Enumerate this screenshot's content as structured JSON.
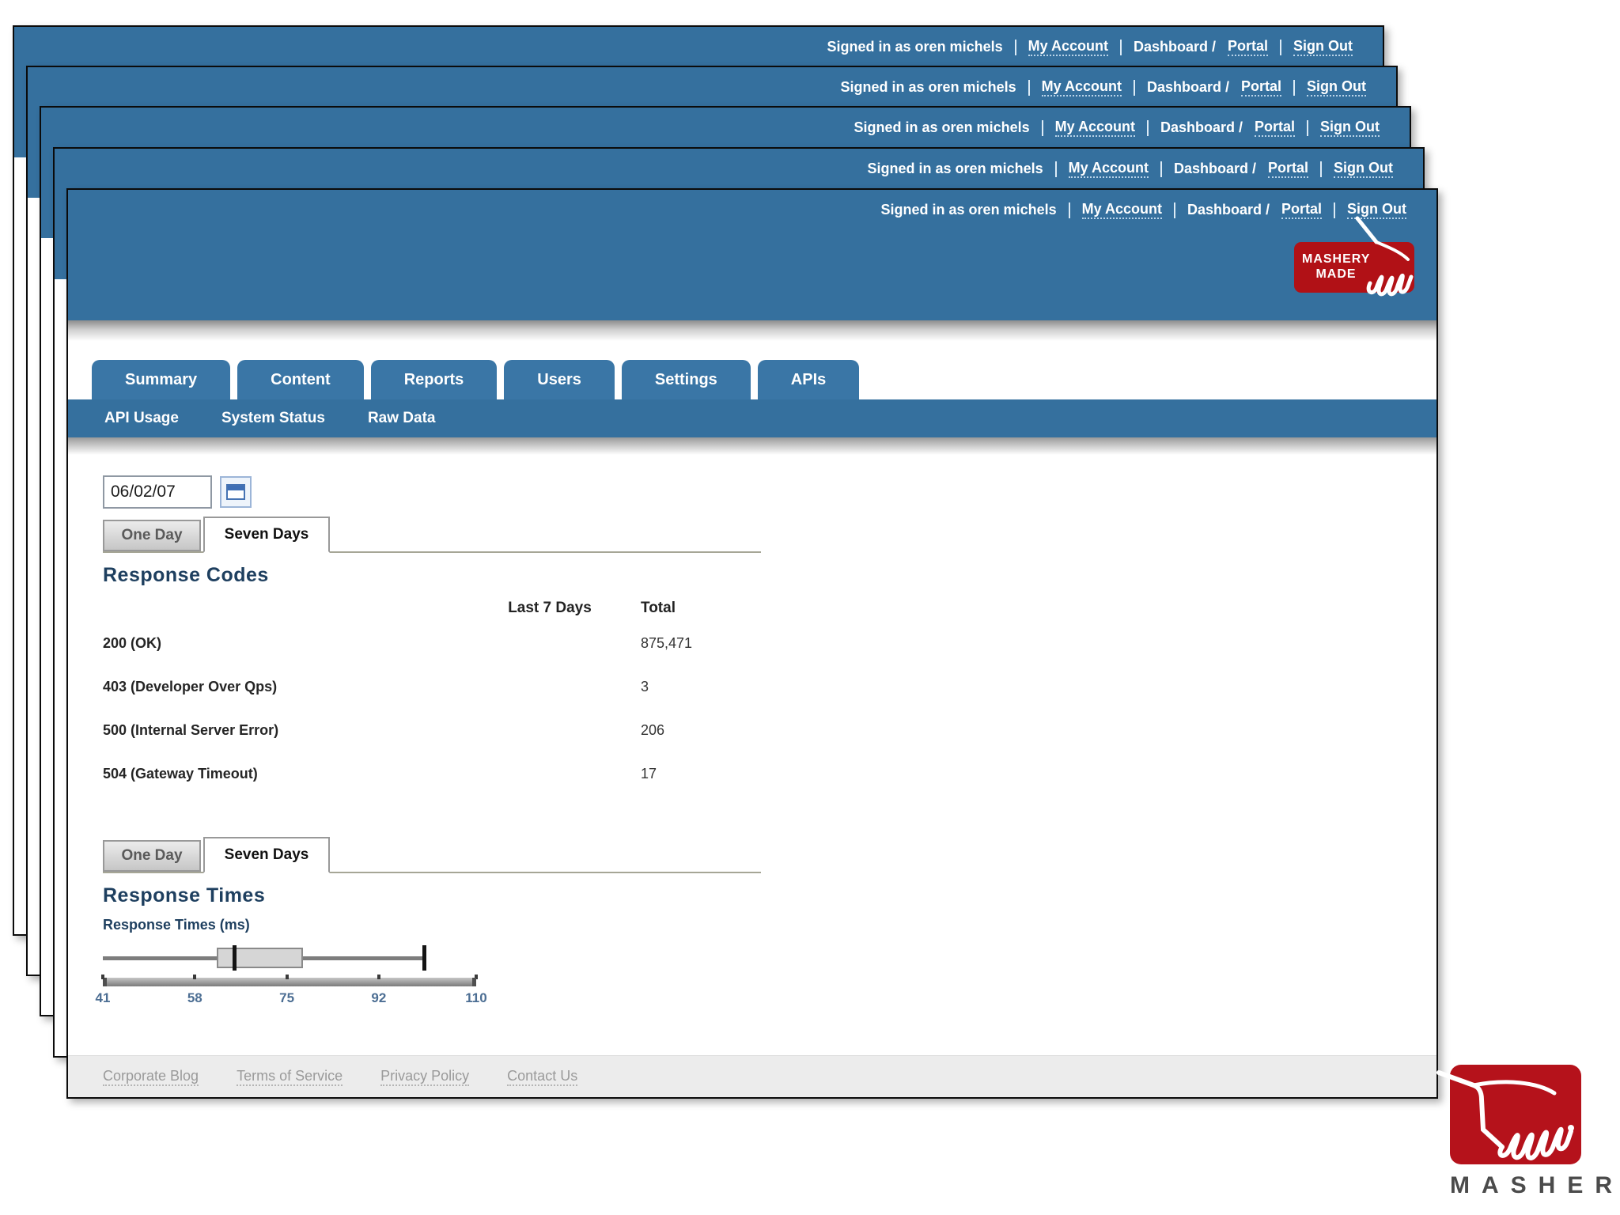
{
  "header": {
    "signed_in": "Signed in as oren michels",
    "my_account": "My Account",
    "dashboard_prefix": "Dashboard /",
    "portal": "Portal",
    "sign_out": "Sign Out",
    "made_badge": {
      "line1": "MASHERY",
      "line2": "MADE"
    }
  },
  "nav": {
    "tabs": [
      "Summary",
      "Content",
      "Reports",
      "Users",
      "Settings",
      "APIs"
    ],
    "subnav": [
      "API Usage",
      "System Status",
      "Raw Data"
    ]
  },
  "controls": {
    "date_value": "06/02/07"
  },
  "response_codes": {
    "tab_one_day": "One Day",
    "tab_seven_days": "Seven Days",
    "title": "Response Codes",
    "col_last7": "Last 7 Days",
    "col_total": "Total",
    "rows": [
      {
        "label": "200 (OK)",
        "last7": "",
        "total": "875,471"
      },
      {
        "label": "403 (Developer Over Qps)",
        "last7": "",
        "total": "3"
      },
      {
        "label": "500 (Internal Server Error)",
        "last7": "",
        "total": "206"
      },
      {
        "label": "504 (Gateway Timeout)",
        "last7": "",
        "total": "17"
      }
    ]
  },
  "response_times": {
    "tab_one_day": "One Day",
    "tab_seven_days": "Seven Days",
    "title": "Response Times",
    "axis_label": "Response Times (ms)"
  },
  "chart_data": {
    "type": "boxplot",
    "title": "Response Times",
    "xlabel": "Response Times (ms)",
    "xlim": [
      41,
      110
    ],
    "ticks": [
      41,
      58,
      75,
      92,
      110
    ],
    "summary": {
      "min": 41,
      "q1": 62,
      "median": 65,
      "q3": 78,
      "max": 100
    },
    "grid": false,
    "legend": "none"
  },
  "footer": {
    "links": [
      "Corporate Blog",
      "Terms of Service",
      "Privacy Policy",
      "Contact Us"
    ]
  },
  "brand": {
    "name": "MASHERY"
  },
  "colors": {
    "header_blue": "#35709e",
    "tab_blue": "#3a76a6",
    "badge_red": "#b11116",
    "logo_red": "#b5121b",
    "heading_navy": "#1e3f5f",
    "footer_link_gray": "#9a9a9a"
  }
}
